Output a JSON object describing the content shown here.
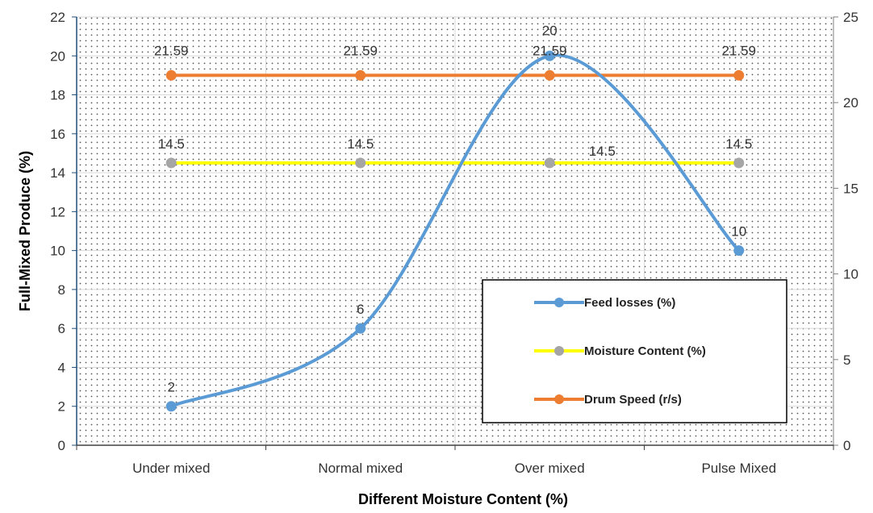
{
  "chart_data": {
    "type": "line",
    "categories": [
      "Under mixed",
      "Normal mixed",
      "Over mixed",
      "Pulse Mixed"
    ],
    "series": [
      {
        "name": "Feed losses (%)",
        "axis": "left",
        "color": "#5b9bd5",
        "smooth": true,
        "values": [
          2,
          6,
          20,
          10
        ],
        "labels": [
          "2",
          "6",
          "20",
          "10"
        ]
      },
      {
        "name": "Moisture Content (%)",
        "axis": "left",
        "color": "#ffff00",
        "marker_color": "#a5a5a5",
        "values": [
          14.5,
          14.5,
          14.5,
          14.5
        ],
        "labels": [
          "14.5",
          "14.5",
          "14.5",
          "14.5"
        ]
      },
      {
        "name": "Drum Speed (r/s)",
        "axis": "right",
        "color": "#ed7d31",
        "values": [
          21.59,
          21.59,
          21.59,
          21.59
        ],
        "labels": [
          "21.59",
          "21.59",
          "21.59",
          "21.59"
        ]
      }
    ],
    "xlabel": "Different Moisture Content (%)",
    "ylabel": "Full-Mixed Produce (%)",
    "ylim": [
      0,
      22
    ],
    "yticks": [
      "0",
      "2",
      "4",
      "6",
      "8",
      "10",
      "12",
      "14",
      "16",
      "18",
      "20",
      "22"
    ],
    "y2lim": [
      0,
      25
    ],
    "y2ticks": [
      "0",
      "5",
      "10",
      "15",
      "20",
      "25"
    ],
    "grid": true,
    "legend_position": "bottom-right"
  }
}
